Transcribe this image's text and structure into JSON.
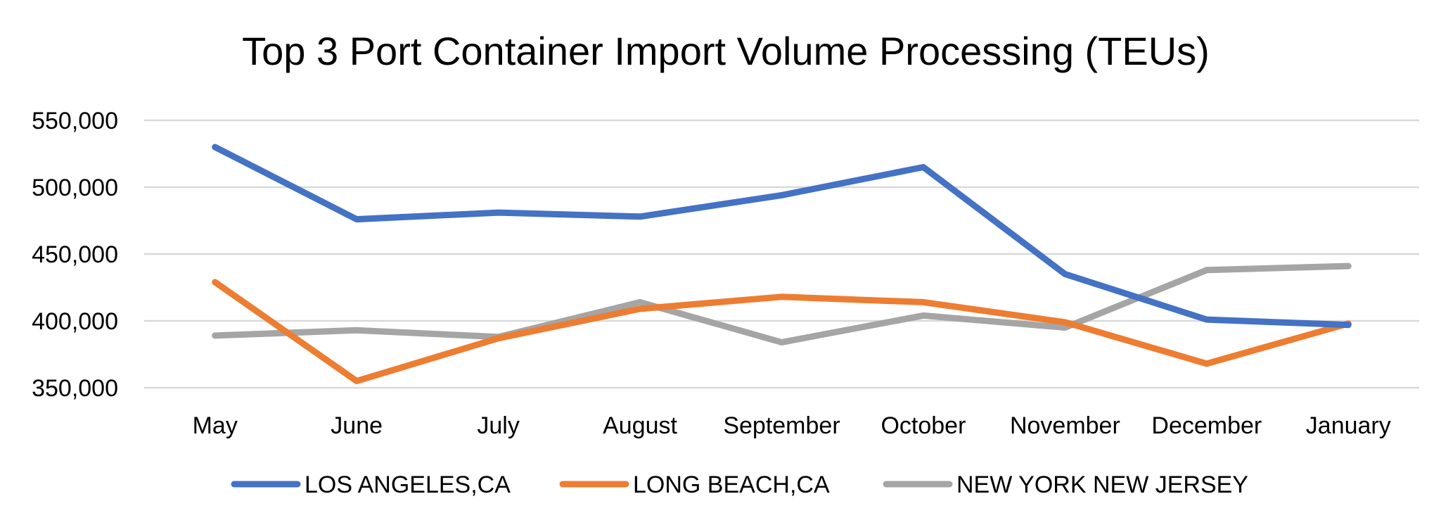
{
  "chart_data": {
    "type": "line",
    "title": "Top 3 Port Container Import Volume Processing (TEUs)",
    "xlabel": "",
    "ylabel": "",
    "categories": [
      "May",
      "June",
      "July",
      "August",
      "September",
      "October",
      "November",
      "December",
      "January"
    ],
    "ylim": [
      350000,
      550000
    ],
    "yticks": [
      350000,
      400000,
      450000,
      500000,
      550000
    ],
    "ytick_labels": [
      "350,000",
      "400,000",
      "450,000",
      "500,000",
      "550,000"
    ],
    "grid": true,
    "legend_position": "bottom",
    "series": [
      {
        "name": "LOS ANGELES,CA",
        "color": "#4472C4",
        "values": [
          530000,
          476000,
          481000,
          478000,
          494000,
          515000,
          435000,
          401000,
          397000
        ]
      },
      {
        "name": "LONG BEACH,CA",
        "color": "#ED7D31",
        "values": [
          429000,
          355000,
          387000,
          409000,
          418000,
          414000,
          399000,
          368000,
          398000
        ]
      },
      {
        "name": "NEW YORK NEW JERSEY",
        "color": "#A5A5A5",
        "values": [
          389000,
          393000,
          388000,
          414000,
          384000,
          404000,
          395000,
          438000,
          441000
        ]
      }
    ]
  }
}
